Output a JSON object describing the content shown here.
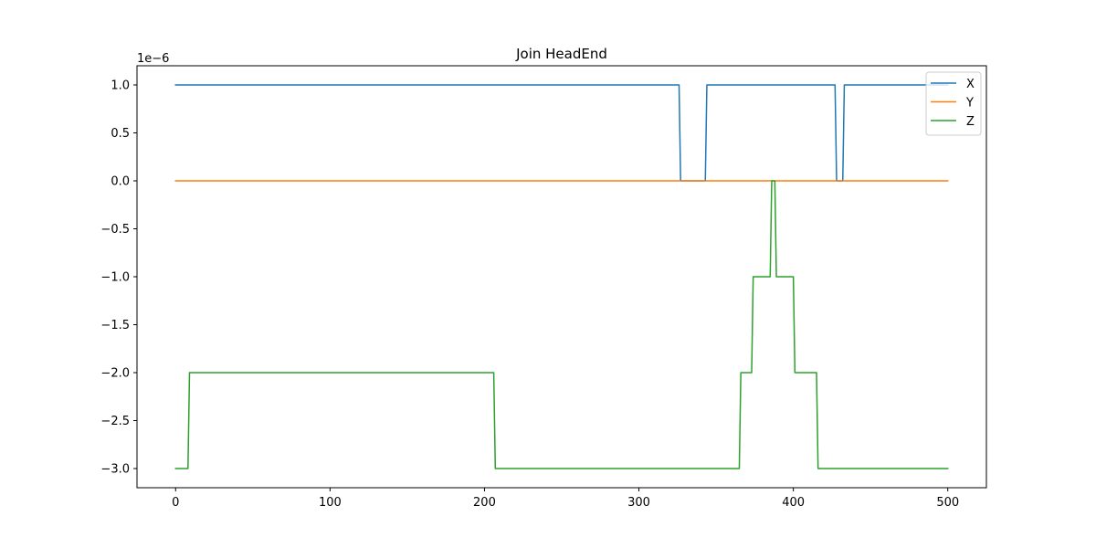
{
  "chart_data": {
    "type": "line",
    "title": "Join HeadEnd",
    "xlabel": "",
    "ylabel": "",
    "y_scale_label": "1e−6",
    "xlim": [
      -25,
      525
    ],
    "ylim": [
      -3.2,
      1.2
    ],
    "x_ticks": [
      0,
      100,
      200,
      300,
      400,
      500
    ],
    "x_tick_labels": [
      "0",
      "100",
      "200",
      "300",
      "400",
      "500"
    ],
    "y_ticks": [
      1.0,
      0.5,
      0.0,
      -0.5,
      -1.0,
      -1.5,
      -2.0,
      -2.5,
      -3.0
    ],
    "y_tick_labels": [
      "1.0",
      "0.5",
      "0.0",
      "−0.5",
      "−1.0",
      "−1.5",
      "−2.0",
      "−2.5",
      "−3.0"
    ],
    "grid": false,
    "legend_position": "top-right",
    "series": [
      {
        "name": "X",
        "color": "#1f77b4",
        "x": [
          0,
          326,
          327,
          343,
          344,
          427,
          428,
          432,
          433,
          500
        ],
        "y": [
          1,
          1,
          0,
          0,
          1,
          1,
          0,
          0,
          1,
          1
        ]
      },
      {
        "name": "Y",
        "color": "#ff7f0e",
        "x": [
          0,
          500
        ],
        "y": [
          0,
          0
        ]
      },
      {
        "name": "Z",
        "color": "#2ca02c",
        "x": [
          0,
          8,
          9,
          206,
          207,
          365,
          366,
          373,
          374,
          385,
          386,
          388,
          389,
          400,
          401,
          415,
          416,
          500
        ],
        "y": [
          -3,
          -3,
          -2,
          -2,
          -3,
          -3,
          -2,
          -2,
          -1,
          -1,
          0,
          0,
          -1,
          -1,
          -2,
          -2,
          -3,
          -3
        ]
      }
    ]
  }
}
